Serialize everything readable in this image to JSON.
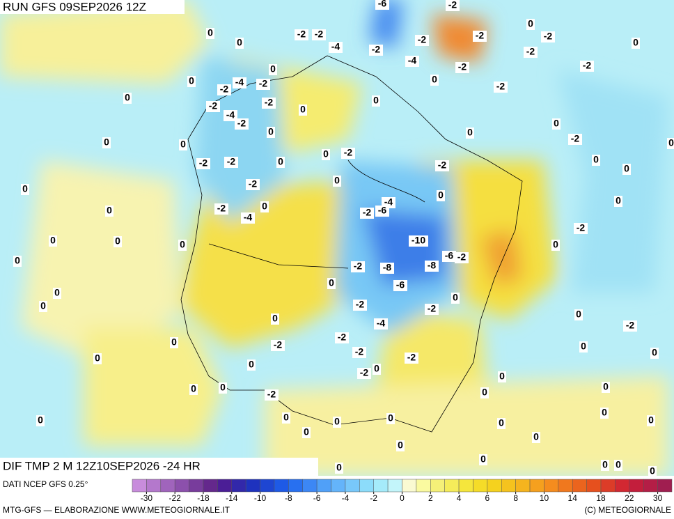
{
  "header": {
    "run": "RUN GFS 09SEP2026 12Z"
  },
  "map": {
    "field": "DIF TMP 2 M 12Z10SEP2026 -24 HR",
    "contour_labels": [
      -6,
      -2,
      0,
      -2,
      -2,
      0,
      -4,
      -2,
      -2,
      -2,
      -2,
      0,
      0,
      -2,
      -4,
      -2,
      -2,
      0,
      0,
      -2,
      -4,
      -2,
      0,
      -2,
      -2,
      -4,
      -2,
      0,
      0,
      -2,
      0,
      0,
      0,
      0,
      0,
      0,
      -2,
      0,
      0,
      -2,
      -2,
      -2,
      -2,
      0,
      0,
      0,
      0,
      -2,
      0,
      0,
      0,
      -4,
      -2,
      -6,
      -2,
      0,
      0,
      -4,
      -2,
      0,
      0,
      -10,
      0,
      0,
      -6,
      -2,
      0,
      -2,
      -8,
      -8,
      0,
      -6,
      0,
      0,
      -2,
      0,
      -2,
      0,
      0,
      -4,
      -2,
      -2,
      0,
      -2,
      0,
      -2,
      0,
      0,
      -2,
      0,
      -2,
      0,
      0,
      0,
      0,
      0,
      0,
      -2,
      0,
      0,
      0,
      0,
      0,
      0,
      0,
      0,
      0,
      0,
      0,
      0,
      0,
      0,
      0
    ]
  },
  "footer": {
    "source": "DATI NCEP GFS 0.25°",
    "credit": "MTG-GFS — ELABORAZIONE WWW.METEOGIORNALE.IT",
    "copyright": "(C) METEOGIORNALE"
  },
  "legend": {
    "ticks": [
      -30,
      -22,
      -18,
      -14,
      -10,
      -8,
      -6,
      -4,
      -2,
      0,
      2,
      4,
      6,
      8,
      10,
      14,
      18,
      22,
      30
    ],
    "colors": [
      "#c88cdc",
      "#b478cc",
      "#a064bc",
      "#8c50ac",
      "#783c9c",
      "#64288c",
      "#4b1e96",
      "#3228aa",
      "#1e32be",
      "#1e46d2",
      "#1e5ae6",
      "#2870f0",
      "#3c87f5",
      "#50a0f8",
      "#64b4fa",
      "#78c8fa",
      "#8cdcfa",
      "#a5ebfa",
      "#c3f5fa",
      "#fafad2",
      "#fafaa0",
      "#f5f078",
      "#f5ec5a",
      "#f5e63c",
      "#f5dc28",
      "#f5d21e",
      "#f5c31e",
      "#f5b41e",
      "#f5a01e",
      "#f58c1e",
      "#f0781e",
      "#eb641e",
      "#e6501e",
      "#dc3c28",
      "#d22832",
      "#c31e3c",
      "#b41e46",
      "#a01e50"
    ]
  }
}
